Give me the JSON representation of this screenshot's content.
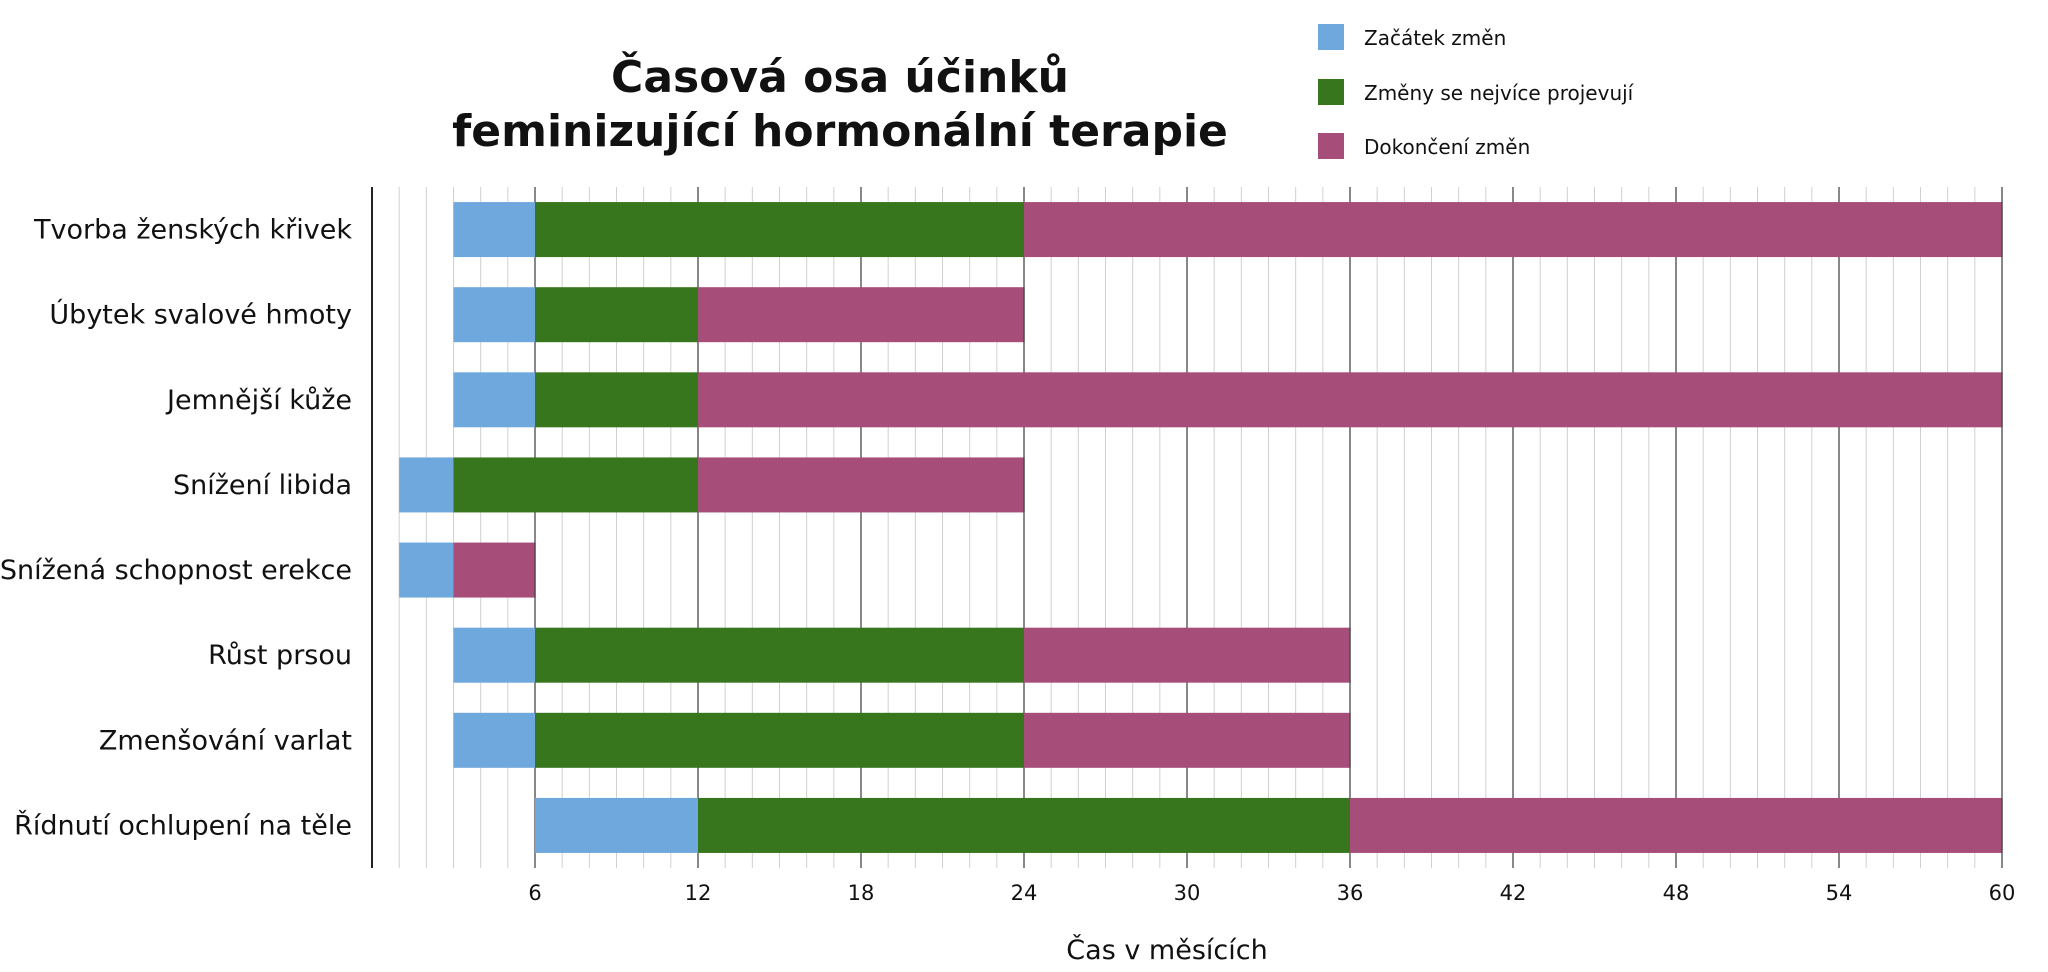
{
  "chart_data": {
    "type": "bar",
    "orientation": "horizontal",
    "stacked": true,
    "title_lines": [
      "Časová osa účinků",
      "feminizující hormonální terapie"
    ],
    "xlabel": "Čas v měsících",
    "ylabel": "",
    "xlim": [
      0,
      60
    ],
    "x_ticks": [
      6,
      12,
      18,
      24,
      30,
      36,
      42,
      48,
      54,
      60
    ],
    "minor_tick_step": 1,
    "grid": true,
    "legend_position": "top-right",
    "categories": [
      "Tvorba ženských křivek",
      "Úbytek svalové hmoty",
      "Jemnější kůže",
      "Snížení libida",
      "Snížená schopnost erekce",
      "Růst prsou",
      "Zmenšování varlat",
      "Řídnutí ochlupení na těle"
    ],
    "series": [
      {
        "name": "Začátek změn",
        "color": "#6fa8dc"
      },
      {
        "name": "Změny se nejvíce projevují",
        "color": "#38761d"
      },
      {
        "name": "Dokončení změn",
        "color": "#a64d79"
      }
    ],
    "segments": [
      [
        [
          3,
          6
        ],
        [
          6,
          24
        ],
        [
          24,
          60
        ]
      ],
      [
        [
          3,
          6
        ],
        [
          6,
          12
        ],
        [
          12,
          24
        ]
      ],
      [
        [
          3,
          6
        ],
        [
          6,
          12
        ],
        [
          12,
          60
        ]
      ],
      [
        [
          1,
          3
        ],
        [
          3,
          12
        ],
        [
          12,
          24
        ]
      ],
      [
        [
          1,
          3
        ],
        null,
        [
          3,
          6
        ]
      ],
      [
        [
          3,
          6
        ],
        [
          6,
          24
        ],
        [
          24,
          36
        ]
      ],
      [
        [
          3,
          6
        ],
        [
          6,
          24
        ],
        [
          24,
          36
        ]
      ],
      [
        [
          6,
          12
        ],
        [
          12,
          36
        ],
        [
          36,
          60
        ]
      ]
    ]
  }
}
